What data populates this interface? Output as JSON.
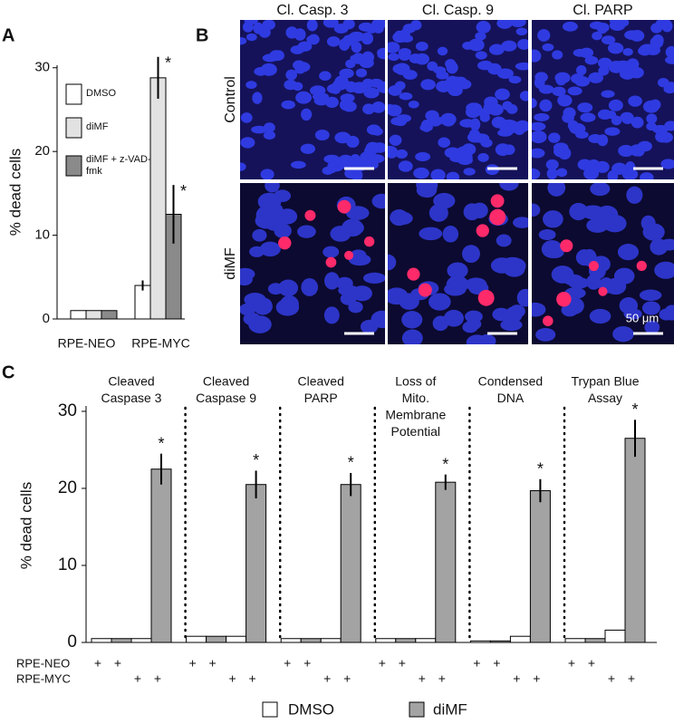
{
  "chart_data": [
    {
      "type": "bar",
      "panel": "A",
      "ylabel": "% dead cells",
      "categories": [
        "RPE-NEO",
        "RPE-MYC"
      ],
      "ylim": [
        0,
        30.3
      ],
      "yticks": [
        0,
        10,
        20,
        30
      ],
      "series": [
        {
          "name": "DMSO",
          "color": "#ffffff",
          "values": [
            1,
            4
          ],
          "errors": [
            null,
            0.6
          ],
          "annotations": [
            null,
            null
          ]
        },
        {
          "name": "diMF",
          "color": "#e2e2e2",
          "values": [
            1,
            28.8
          ],
          "errors": [
            null,
            2.5
          ],
          "annotations": [
            null,
            "*"
          ]
        },
        {
          "name": "diMF + z-VAD-fmk",
          "color": "#8a8a8a",
          "values": [
            1,
            12.5
          ],
          "errors": [
            null,
            3.5
          ],
          "annotations": [
            null,
            "*"
          ]
        }
      ]
    },
    {
      "type": "grouped-bar",
      "panel": "C",
      "ylabel": "% dead cells",
      "categories": [
        [
          "Cleaved",
          "Caspase 3"
        ],
        [
          "Cleaved",
          "Caspase 9"
        ],
        [
          "Cleaved",
          "PARP"
        ],
        [
          "Loss of",
          "Mito.",
          "Membrane",
          "Potential"
        ],
        [
          "Condensed",
          "DNA"
        ],
        [
          "Trypan Blue",
          "Assay"
        ]
      ],
      "rows": [
        "RPE-NEO",
        "RPE-MYC"
      ],
      "row_marker": "+",
      "ylim": [
        0,
        30.7
      ],
      "yticks": [
        0,
        10,
        20,
        30
      ],
      "series": [
        {
          "name": "DMSO",
          "color": "#ffffff",
          "values": [
            [
              0.5,
              0.5
            ],
            [
              0.8,
              0.8
            ],
            [
              0.5,
              0.5
            ],
            [
              0.5,
              0.5
            ],
            [
              0.2,
              0.8
            ],
            [
              0.5,
              1.6
            ]
          ]
        },
        {
          "name": "diMF",
          "color": "#a3a3a3",
          "values": [
            [
              0.5,
              22.5
            ],
            [
              0.8,
              20.5
            ],
            [
              0.5,
              20.5
            ],
            [
              0.5,
              20.8
            ],
            [
              0.2,
              19.7
            ],
            [
              0.5,
              26.5
            ]
          ],
          "errors": [
            [
              null,
              2
            ],
            [
              null,
              1.8
            ],
            [
              null,
              1.5
            ],
            [
              null,
              1
            ],
            [
              null,
              1.5
            ],
            [
              null,
              2.4
            ]
          ],
          "annotations": [
            [
              null,
              "*"
            ],
            [
              null,
              "*"
            ],
            [
              null,
              "*"
            ],
            [
              null,
              "*"
            ],
            [
              null,
              "*"
            ],
            [
              null,
              "*"
            ]
          ]
        }
      ]
    }
  ],
  "micrographs": {
    "panel": "B",
    "columns": [
      "Cl. Casp. 3",
      "Cl. Casp. 9",
      "Cl. PARP"
    ],
    "rows": [
      "Control",
      "diMF"
    ],
    "scale_bar_label": "50 μm"
  }
}
